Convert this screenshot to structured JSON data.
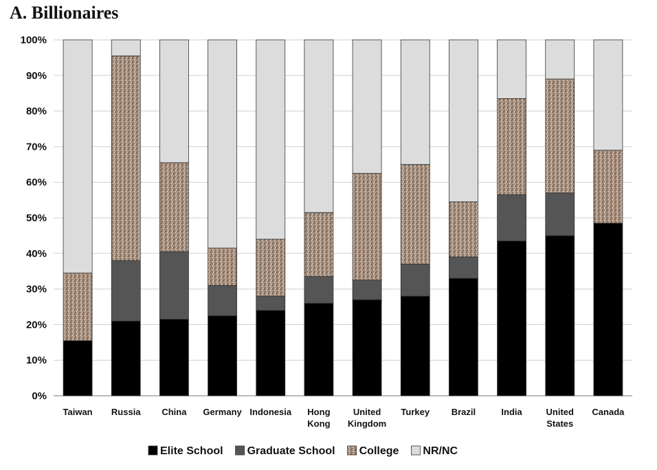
{
  "chart_data": {
    "type": "bar",
    "stacked": true,
    "title": "A. Billionaires",
    "xlabel": "",
    "ylabel": "",
    "ylim": [
      0,
      100
    ],
    "yticks": [
      "0%",
      "10%",
      "20%",
      "30%",
      "40%",
      "50%",
      "60%",
      "70%",
      "80%",
      "90%",
      "100%"
    ],
    "grid": true,
    "legend_position": "bottom",
    "categories": [
      [
        "Taiwan"
      ],
      [
        "Russia"
      ],
      [
        "China"
      ],
      [
        "Germany"
      ],
      [
        "Indonesia"
      ],
      [
        "Hong",
        "Kong"
      ],
      [
        "United",
        "Kingdom"
      ],
      [
        "Turkey"
      ],
      [
        "Brazil"
      ],
      [
        "India"
      ],
      [
        "United",
        "States"
      ],
      [
        "Canada"
      ]
    ],
    "series": [
      {
        "name": "Elite School",
        "color": "#000000",
        "values": [
          15.5,
          21,
          21.5,
          22.5,
          24,
          26,
          27,
          28,
          33,
          43.5,
          45,
          48.5
        ]
      },
      {
        "name": "Graduate School",
        "color": "#555555",
        "values": [
          0,
          17,
          19,
          8.5,
          4,
          7.5,
          5.5,
          9,
          6,
          13,
          12,
          0
        ]
      },
      {
        "name": "College",
        "color": "#a48c7a",
        "values": [
          19,
          57.5,
          25,
          10.5,
          16,
          18,
          30,
          28,
          15.5,
          27,
          32,
          20.5
        ]
      },
      {
        "name": "NR/NC",
        "color": "#dcdcdc",
        "values": [
          65.5,
          4.5,
          34.5,
          58.5,
          56,
          48.5,
          37.5,
          35,
          45.5,
          16.5,
          11,
          31
        ]
      }
    ]
  }
}
